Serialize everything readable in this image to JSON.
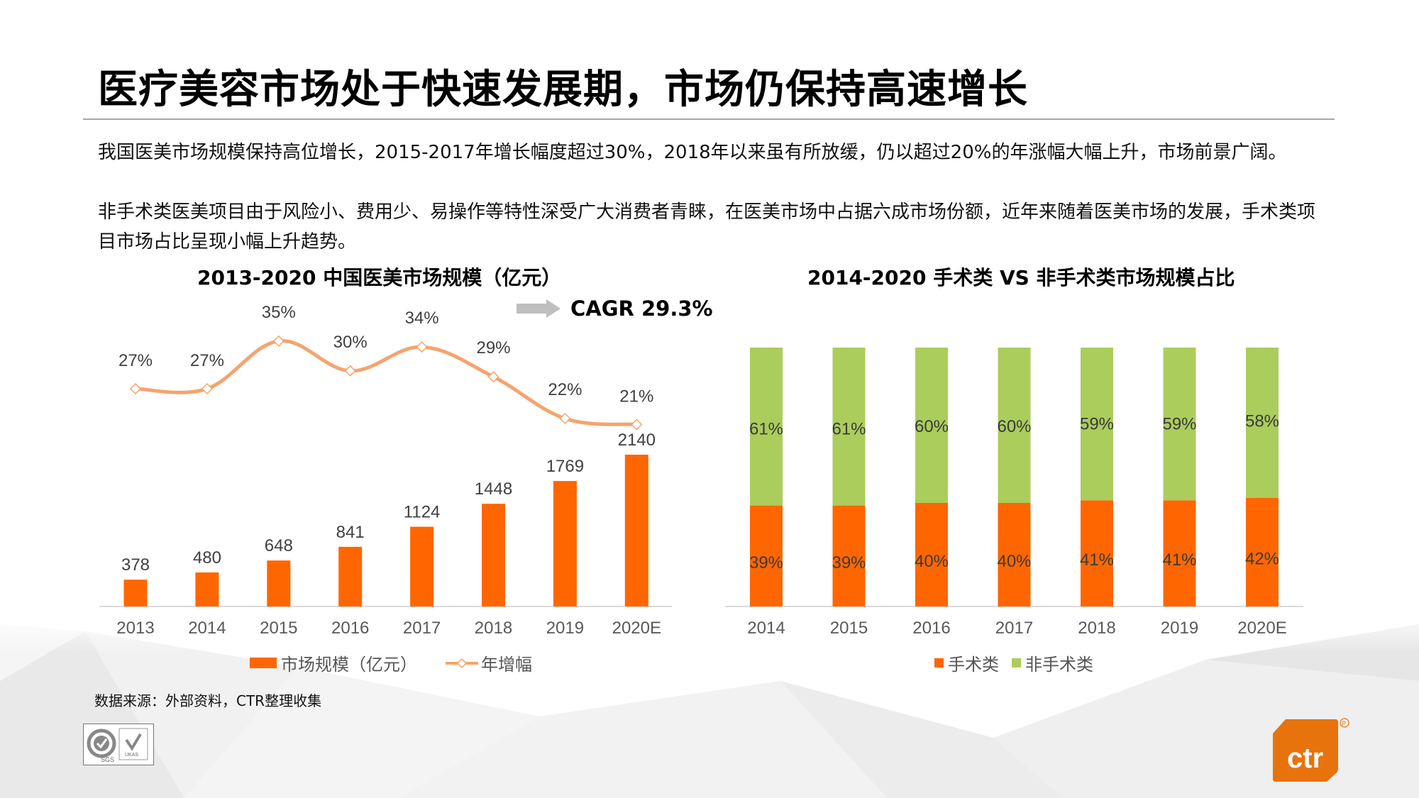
{
  "slide": {
    "title": "医疗美容市场处于快速发展期，市场仍保持高速增长",
    "paragraphs": [
      "我国医美市场规模保持高位增长，2015-2017年增长幅度超过30%，2018年以来虽有所放缓，仍以超过20%的年涨幅大幅上升，市场前景广阔。",
      "非手术类医美项目由于风险小、费用少、易操作等特性深受广大消费者青睐，在医美市场中占据六成市场份额，近年来随着医美市场的发展，手术类项目市场占比呈现小幅上升趋势。"
    ],
    "source": "数据来源：外部资料，CTR整理收集",
    "badge_label": "SGS UKAS",
    "logo_text": "ctr",
    "logo_mark": "®"
  },
  "colors": {
    "orange": "#ff6600",
    "line": "#f4a46f",
    "green": "#abcd5c",
    "axis": "#d9d9d9",
    "label": "#404040",
    "arrow": "#bfbfbf",
    "logo": "#e8730c"
  },
  "chart_data": [
    {
      "type": "bar",
      "title": "2013-2020 中国医美市场规模（亿元）",
      "annotation": "CAGR 29.3%",
      "categories": [
        "2013",
        "2014",
        "2015",
        "2016",
        "2017",
        "2018",
        "2019",
        "2020E"
      ],
      "series": [
        {
          "name": "市场规模（亿元）",
          "kind": "bar",
          "values": [
            378,
            480,
            648,
            841,
            1124,
            1448,
            1769,
            2140
          ],
          "labels": [
            "378",
            "480",
            "648",
            "841",
            "1124",
            "1448",
            "1769",
            "2140"
          ]
        },
        {
          "name": "年增幅",
          "kind": "line",
          "values": [
            27,
            27,
            35,
            30,
            34,
            29,
            22,
            21
          ],
          "labels": [
            "27%",
            "27%",
            "35%",
            "30%",
            "34%",
            "29%",
            "22%",
            "21%"
          ]
        }
      ],
      "legend": [
        "市场规模（亿元）",
        "年增幅"
      ],
      "legend_position": "bottom",
      "grid": false
    },
    {
      "type": "bar",
      "stacked": true,
      "title": "2014-2020 手术类 VS 非手术类市场规模占比",
      "categories": [
        "2014",
        "2015",
        "2016",
        "2017",
        "2018",
        "2019",
        "2020E"
      ],
      "series": [
        {
          "name": "手术类",
          "values": [
            39,
            39,
            40,
            40,
            41,
            41,
            42
          ],
          "labels": [
            "39%",
            "39%",
            "40%",
            "40%",
            "41%",
            "41%",
            "42%"
          ]
        },
        {
          "name": "非手术类",
          "values": [
            61,
            61,
            60,
            60,
            59,
            59,
            58
          ],
          "labels": [
            "61%",
            "61%",
            "60%",
            "60%",
            "59%",
            "59%",
            "58%"
          ]
        }
      ],
      "legend": [
        "手术类",
        "非手术类"
      ],
      "legend_position": "bottom",
      "ylim": [
        0,
        100
      ],
      "grid": false
    }
  ]
}
